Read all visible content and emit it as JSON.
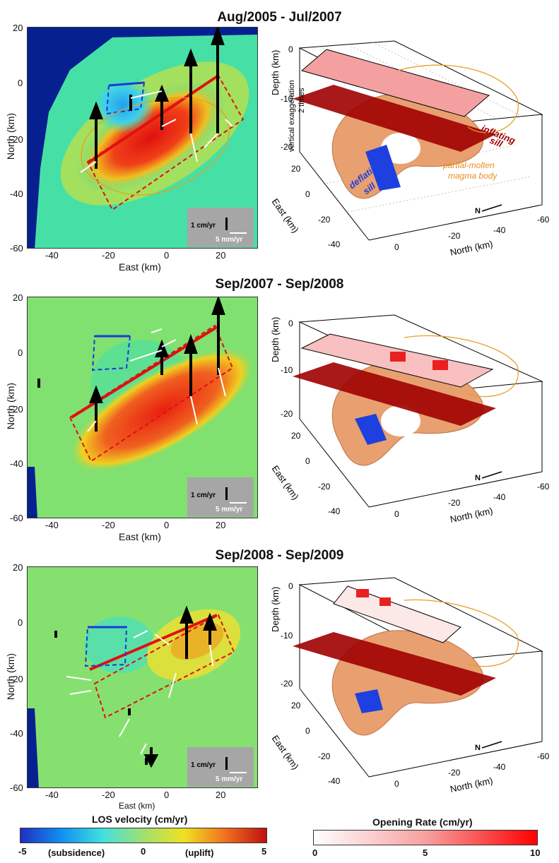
{
  "panels": [
    {
      "title": "Aug/2005 - Jul/2007"
    },
    {
      "title": "Sep/2007 - Sep/2008"
    },
    {
      "title": "Sep/2008 - Sep/2009"
    }
  ],
  "map_axes": {
    "xlabel": "East (km)",
    "ylabel": "North (km)",
    "xticks": [
      "-40",
      "-20",
      "0",
      "20"
    ],
    "yticks": [
      "20",
      "0",
      "-20",
      "-40",
      "-60"
    ]
  },
  "vector_legend": {
    "vertical": "1 cm/yr",
    "horizontal": "5 mm/yr"
  },
  "model3d": {
    "depth_label": "Depth (km)",
    "depth_ticks": [
      "0",
      "-10",
      "-20"
    ],
    "east_label": "East (km)",
    "east_ticks": [
      "20",
      "0",
      "-20",
      "-40"
    ],
    "north_label": "North (km)",
    "north_ticks": [
      "0",
      "-20",
      "-40",
      "-60"
    ],
    "north_arrow": "N",
    "annotations": {
      "vertical_exaggeration": "vertical exaggeration",
      "two_times": "2 times",
      "inflating_1": "inflating",
      "inflating_2": "sill",
      "deflating_1": "deflating",
      "deflating_2": "sill",
      "magma_1": "partial-molten",
      "magma_2": "magma body"
    }
  },
  "colorbars": {
    "los": {
      "title": "LOS velocity (cm/yr)",
      "ticks": [
        "-5",
        "0",
        "5"
      ],
      "subsidence": "(subsidence)",
      "uplift": "(uplift)"
    },
    "opening": {
      "title": "Opening Rate (cm/yr)",
      "ticks": [
        "0",
        "5",
        "10"
      ]
    }
  },
  "colors": {
    "map_bg": "#3fe0a8",
    "deep_blue": "#06208f",
    "inflating": "#a00000",
    "deflating": "#1e40e0",
    "magma": "#e8a070",
    "contour": "#e8a020",
    "fault_red": "#e01010",
    "box_blue": "#1a3ad8"
  }
}
